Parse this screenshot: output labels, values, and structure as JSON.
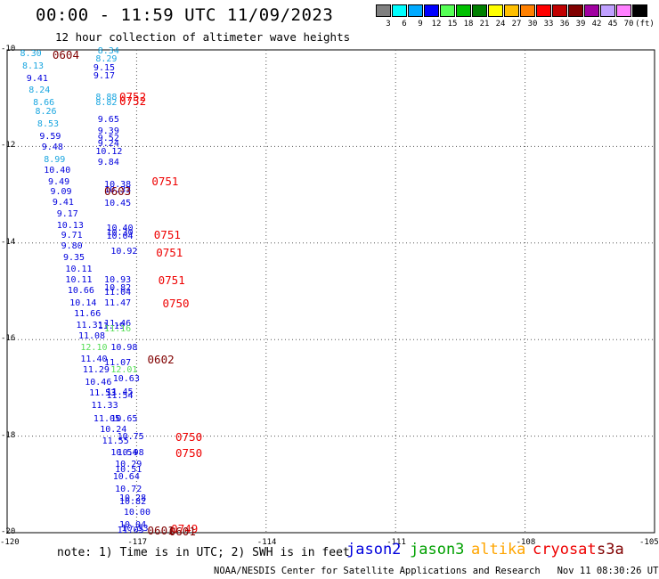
{
  "header": {
    "title": "00:00 - 11:59 UTC 11/09/2023",
    "subtitle": "12 hour collection of altimeter wave heights"
  },
  "scale": {
    "colors": [
      "#808080",
      "#00ffff",
      "#00aaff",
      "#0000ff",
      "#55ff55",
      "#00c000",
      "#008000",
      "#ffff00",
      "#ffc000",
      "#ff8000",
      "#ff0000",
      "#c00000",
      "#800000",
      "#a000a0",
      "#c0a0ff",
      "#ff80ff",
      "#000000"
    ],
    "labels": [
      "3",
      "6",
      "9",
      "12",
      "15",
      "18",
      "21",
      "24",
      "27",
      "30",
      "33",
      "36",
      "39",
      "42",
      "45",
      "70",
      "(ft)"
    ]
  },
  "axes": {
    "lat_labels": [
      "-10",
      "-12",
      "-14",
      "-16",
      "-18",
      "-20"
    ],
    "lon_labels": [
      "-120",
      "-117",
      "-114",
      "-111",
      "-108",
      "-105"
    ]
  },
  "observations": [
    {
      "t": "8.30",
      "lon": -119.7,
      "lat": -10.1,
      "c": "#1aa6e0"
    },
    {
      "t": "8.34",
      "lon": -117.9,
      "lat": -10.03,
      "c": "#1aa6e0"
    },
    {
      "t": "8.29",
      "lon": -117.95,
      "lat": -10.2,
      "c": "#1aa6e0"
    },
    {
      "t": "8.13",
      "lon": -119.65,
      "lat": -10.35,
      "c": "#1aa6e0"
    },
    {
      "t": "9.15",
      "lon": -118.0,
      "lat": -10.38,
      "c": "#0000dd"
    },
    {
      "t": "9.41",
      "lon": -119.55,
      "lat": -10.6,
      "c": "#0000dd"
    },
    {
      "t": "9.17",
      "lon": -118.0,
      "lat": -10.56,
      "c": "#0000dd"
    },
    {
      "t": "8.24",
      "lon": -119.5,
      "lat": -10.85,
      "c": "#1aa6e0"
    },
    {
      "t": "8.66",
      "lon": -119.4,
      "lat": -11.1,
      "c": "#1aa6e0"
    },
    {
      "t": "8.88",
      "lon": -117.95,
      "lat": -11.0,
      "c": "#1aa6e0"
    },
    {
      "t": "8.82",
      "lon": -117.95,
      "lat": -11.1,
      "c": "#1aa6e0"
    },
    {
      "t": "8.26",
      "lon": -119.35,
      "lat": -11.3,
      "c": "#1aa6e0"
    },
    {
      "t": "9.65",
      "lon": -117.9,
      "lat": -11.45,
      "c": "#0000dd"
    },
    {
      "t": "8.53",
      "lon": -119.3,
      "lat": -11.55,
      "c": "#1aa6e0"
    },
    {
      "t": "9.39",
      "lon": -117.9,
      "lat": -11.7,
      "c": "#0000dd"
    },
    {
      "t": "9.59",
      "lon": -119.25,
      "lat": -11.8,
      "c": "#0000dd"
    },
    {
      "t": "9.52",
      "lon": -117.9,
      "lat": -11.85,
      "c": "#0000dd"
    },
    {
      "t": "9.48",
      "lon": -119.2,
      "lat": -12.03,
      "c": "#0000dd"
    },
    {
      "t": "9.24",
      "lon": -117.9,
      "lat": -11.95,
      "c": "#0000dd"
    },
    {
      "t": "10.12",
      "lon": -117.95,
      "lat": -12.13,
      "c": "#0000dd"
    },
    {
      "t": "8.99",
      "lon": -119.15,
      "lat": -12.28,
      "c": "#1aa6e0"
    },
    {
      "t": "9.84",
      "lon": -117.9,
      "lat": -12.35,
      "c": "#0000dd"
    },
    {
      "t": "10.40",
      "lon": -119.15,
      "lat": -12.5,
      "c": "#0000dd"
    },
    {
      "t": "9.49",
      "lon": -119.05,
      "lat": -12.75,
      "c": "#0000dd"
    },
    {
      "t": "10.38",
      "lon": -117.75,
      "lat": -12.8,
      "c": "#0000dd"
    },
    {
      "t": "9.09",
      "lon": -119.0,
      "lat": -12.95,
      "c": "#0000dd"
    },
    {
      "t": "10.33",
      "lon": -117.75,
      "lat": -12.92,
      "c": "#0000dd"
    },
    {
      "t": "9.41",
      "lon": -118.95,
      "lat": -13.18,
      "c": "#0000dd"
    },
    {
      "t": "10.45",
      "lon": -117.75,
      "lat": -13.2,
      "c": "#0000dd"
    },
    {
      "t": "9.17",
      "lon": -118.85,
      "lat": -13.42,
      "c": "#0000dd"
    },
    {
      "t": "10.13",
      "lon": -118.85,
      "lat": -13.65,
      "c": "#0000dd"
    },
    {
      "t": "10.40",
      "lon": -117.7,
      "lat": -13.7,
      "c": "#0000dd"
    },
    {
      "t": "9.71",
      "lon": -118.75,
      "lat": -13.85,
      "c": "#0000dd"
    },
    {
      "t": "10.30",
      "lon": -117.7,
      "lat": -13.8,
      "c": "#0000dd"
    },
    {
      "t": "10.04",
      "lon": -117.7,
      "lat": -13.87,
      "c": "#0000dd"
    },
    {
      "t": "9.80",
      "lon": -118.75,
      "lat": -14.08,
      "c": "#0000dd"
    },
    {
      "t": "10.92",
      "lon": -117.6,
      "lat": -14.18,
      "c": "#0000dd"
    },
    {
      "t": "9.35",
      "lon": -118.7,
      "lat": -14.32,
      "c": "#0000dd"
    },
    {
      "t": "10.11",
      "lon": -118.65,
      "lat": -14.55,
      "c": "#0000dd"
    },
    {
      "t": "10.11",
      "lon": -118.65,
      "lat": -14.78,
      "c": "#0000dd"
    },
    {
      "t": "10.93",
      "lon": -117.75,
      "lat": -14.78,
      "c": "#0000dd"
    },
    {
      "t": "10.66",
      "lon": -118.6,
      "lat": -15.0,
      "c": "#0000dd"
    },
    {
      "t": "10.82",
      "lon": -117.75,
      "lat": -14.95,
      "c": "#0000dd"
    },
    {
      "t": "11.04",
      "lon": -117.75,
      "lat": -15.03,
      "c": "#0000dd"
    },
    {
      "t": "10.14",
      "lon": -118.55,
      "lat": -15.25,
      "c": "#0000dd"
    },
    {
      "t": "11.47",
      "lon": -117.75,
      "lat": -15.25,
      "c": "#0000dd"
    },
    {
      "t": "11.66",
      "lon": -118.45,
      "lat": -15.48,
      "c": "#0000dd"
    },
    {
      "t": "11.46",
      "lon": -117.75,
      "lat": -15.68,
      "c": "#0000dd"
    },
    {
      "t": "11.31",
      "lon": -118.4,
      "lat": -15.72,
      "c": "#0000dd"
    },
    {
      "t": "11.19",
      "lon": -117.9,
      "lat": -15.73,
      "c": "#0000dd"
    },
    {
      "t": "11.16",
      "lon": -117.75,
      "lat": -15.8,
      "c": "#55dd55"
    },
    {
      "t": "11.08",
      "lon": -118.35,
      "lat": -15.95,
      "c": "#0000dd"
    },
    {
      "t": "12.10",
      "lon": -118.3,
      "lat": -16.18,
      "c": "#55dd55"
    },
    {
      "t": "10.98",
      "lon": -117.6,
      "lat": -16.18,
      "c": "#0000dd"
    },
    {
      "t": "11.40",
      "lon": -118.3,
      "lat": -16.42,
      "c": "#0000dd"
    },
    {
      "t": "11.07",
      "lon": -117.75,
      "lat": -16.5,
      "c": "#0000dd"
    },
    {
      "t": "11.29",
      "lon": -118.25,
      "lat": -16.65,
      "c": "#0000dd"
    },
    {
      "t": "12.01",
      "lon": -117.6,
      "lat": -16.65,
      "c": "#55dd55"
    },
    {
      "t": "10.63",
      "lon": -117.55,
      "lat": -16.82,
      "c": "#0000dd"
    },
    {
      "t": "10.46",
      "lon": -118.2,
      "lat": -16.9,
      "c": "#0000dd"
    },
    {
      "t": "11.45",
      "lon": -117.7,
      "lat": -17.1,
      "c": "#0000dd"
    },
    {
      "t": "11.53",
      "lon": -118.1,
      "lat": -17.13,
      "c": "#0000dd"
    },
    {
      "t": "11.54",
      "lon": -117.7,
      "lat": -17.18,
      "c": "#0000dd"
    },
    {
      "t": "11.33",
      "lon": -118.05,
      "lat": -17.38,
      "c": "#0000dd"
    },
    {
      "t": "11.05",
      "lon": -118.0,
      "lat": -17.65,
      "c": "#0000dd"
    },
    {
      "t": "10.65",
      "lon": -117.6,
      "lat": -17.65,
      "c": "#0000dd"
    },
    {
      "t": "10.24",
      "lon": -117.85,
      "lat": -17.88,
      "c": "#0000dd"
    },
    {
      "t": "10.75",
      "lon": -117.45,
      "lat": -18.03,
      "c": "#0000dd"
    },
    {
      "t": "11.55",
      "lon": -117.8,
      "lat": -18.12,
      "c": "#0000dd"
    },
    {
      "t": "10.54",
      "lon": -117.6,
      "lat": -18.35,
      "c": "#0000dd"
    },
    {
      "t": "10.98",
      "lon": -117.45,
      "lat": -18.35,
      "c": "#0000dd"
    },
    {
      "t": "10.29",
      "lon": -117.5,
      "lat": -18.6,
      "c": "#0000dd"
    },
    {
      "t": "10.51",
      "lon": -117.5,
      "lat": -18.7,
      "c": "#0000dd"
    },
    {
      "t": "10.64",
      "lon": -117.55,
      "lat": -18.85,
      "c": "#0000dd"
    },
    {
      "t": "10.72",
      "lon": -117.5,
      "lat": -19.12,
      "c": "#0000dd"
    },
    {
      "t": "10.28",
      "lon": -117.4,
      "lat": -19.3,
      "c": "#0000dd"
    },
    {
      "t": "10.82",
      "lon": -117.4,
      "lat": -19.38,
      "c": "#0000dd"
    },
    {
      "t": "10.00",
      "lon": -117.3,
      "lat": -19.6,
      "c": "#0000dd"
    },
    {
      "t": "10.04",
      "lon": -117.4,
      "lat": -19.85,
      "c": "#0000dd"
    },
    {
      "t": "10.53",
      "lon": -117.35,
      "lat": -19.92,
      "c": "#0000dd"
    },
    {
      "t": "11.05",
      "lon": -117.45,
      "lat": -19.97,
      "c": "#0000dd"
    }
  ],
  "time_labels": [
    {
      "t": "0604",
      "lon": -118.95,
      "lat": -10.11,
      "c": "#800000"
    },
    {
      "t": "0752",
      "lon": -117.4,
      "lat": -10.97,
      "c": "#ee0000"
    },
    {
      "t": "0752",
      "lon": -117.4,
      "lat": -11.07,
      "c": "#ee0000"
    },
    {
      "t": "0751",
      "lon": -116.65,
      "lat": -12.73,
      "c": "#ee0000"
    },
    {
      "t": "0603",
      "lon": -117.75,
      "lat": -12.94,
      "c": "#800000"
    },
    {
      "t": "0751",
      "lon": -116.6,
      "lat": -13.83,
      "c": "#ee0000"
    },
    {
      "t": "0751",
      "lon": -116.55,
      "lat": -14.2,
      "c": "#ee0000"
    },
    {
      "t": "0751",
      "lon": -116.5,
      "lat": -14.77,
      "c": "#ee0000"
    },
    {
      "t": "0750",
      "lon": -116.4,
      "lat": -15.25,
      "c": "#ee0000"
    },
    {
      "t": "0602",
      "lon": -116.75,
      "lat": -16.42,
      "c": "#800000"
    },
    {
      "t": "0750",
      "lon": -116.1,
      "lat": -18.03,
      "c": "#ee0000"
    },
    {
      "t": "0750",
      "lon": -116.1,
      "lat": -18.35,
      "c": "#ee0000"
    },
    {
      "t": "0749",
      "lon": -116.2,
      "lat": -19.92,
      "c": "#ee0000"
    },
    {
      "t": "0601",
      "lon": -116.75,
      "lat": -19.97,
      "c": "#800000"
    },
    {
      "t": "0601",
      "lon": -116.25,
      "lat": -19.99,
      "c": "#800000"
    }
  ],
  "footer": {
    "note": "note: 1) Time is in UTC; 2) SWH is in feet",
    "credit": "NOAA/NESDIS Center for Satellite Applications and Research   Nov 11 08:30:26 UTC 2023"
  },
  "legend": [
    {
      "name": "jason2",
      "color": "#0000dd"
    },
    {
      "name": "jason3",
      "color": "#00a000"
    },
    {
      "name": "altika",
      "color": "#ffa500"
    },
    {
      "name": "cryosat",
      "color": "#ee0000"
    },
    {
      "name": "s3a",
      "color": "#800000"
    }
  ]
}
